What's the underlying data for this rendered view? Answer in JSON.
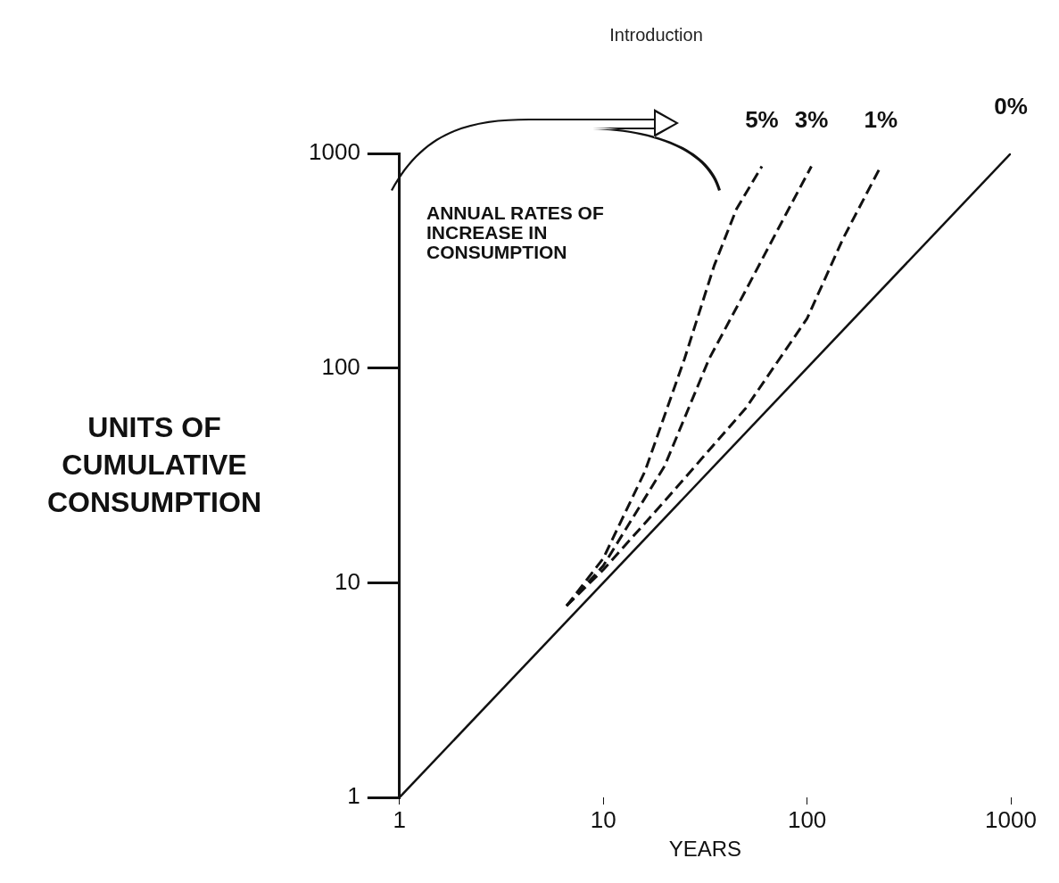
{
  "chart_data": {
    "type": "line",
    "title": "Introduction",
    "xlabel": "YEARS",
    "ylabel": "UNITS OF CUMULATIVE CONSUMPTION",
    "annotations": [
      "ANNUAL RATES OF INCREASE IN CONSUMPTION"
    ],
    "log": "xy",
    "xlim": [
      1,
      1000
    ],
    "ylim": [
      1,
      1000
    ],
    "xticks": [
      1,
      10,
      100,
      1000
    ],
    "yticks": [
      1,
      10,
      100,
      1000
    ],
    "grid": false,
    "legend": false,
    "marker": "none",
    "series": [
      {
        "name": "5%",
        "color": "#111111",
        "line_style": "dashed",
        "x": [
          6.6,
          10,
          16,
          25,
          35,
          45,
          60
        ],
        "values": [
          7.8,
          13,
          33,
          110,
          300,
          550,
          870
        ]
      },
      {
        "name": "3%",
        "color": "#111111",
        "line_style": "dashed",
        "x": [
          6.6,
          10,
          20,
          33,
          50,
          80,
          105
        ],
        "values": [
          7.8,
          12,
          35,
          110,
          230,
          536,
          870
        ]
      },
      {
        "name": "1%",
        "color": "#111111",
        "line_style": "dashed",
        "x": [
          6.6,
          10,
          20,
          50,
          100,
          150,
          230
        ],
        "values": [
          7.8,
          11.5,
          24,
          65,
          170,
          400,
          870
        ]
      },
      {
        "name": "0%",
        "color": "#111111",
        "line_style": "solid",
        "x": [
          1,
          1000
        ],
        "values": [
          1,
          1000
        ]
      }
    ]
  }
}
